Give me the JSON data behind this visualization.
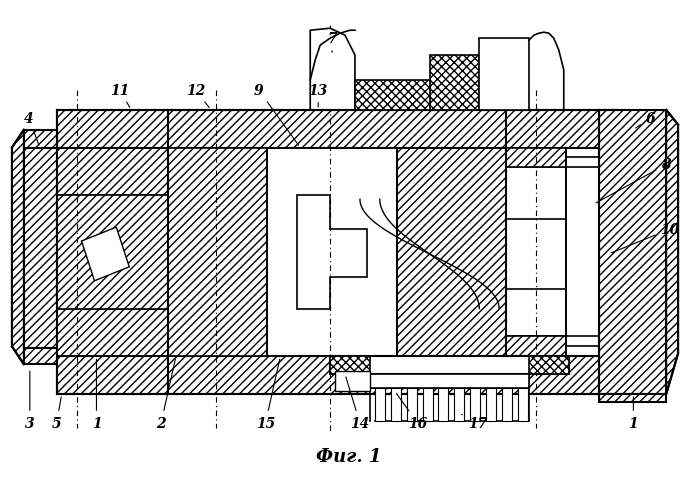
{
  "title": "Фиг. 1",
  "title_fontsize": 13,
  "bg_color": "#ffffff",
  "line_color": "#000000"
}
